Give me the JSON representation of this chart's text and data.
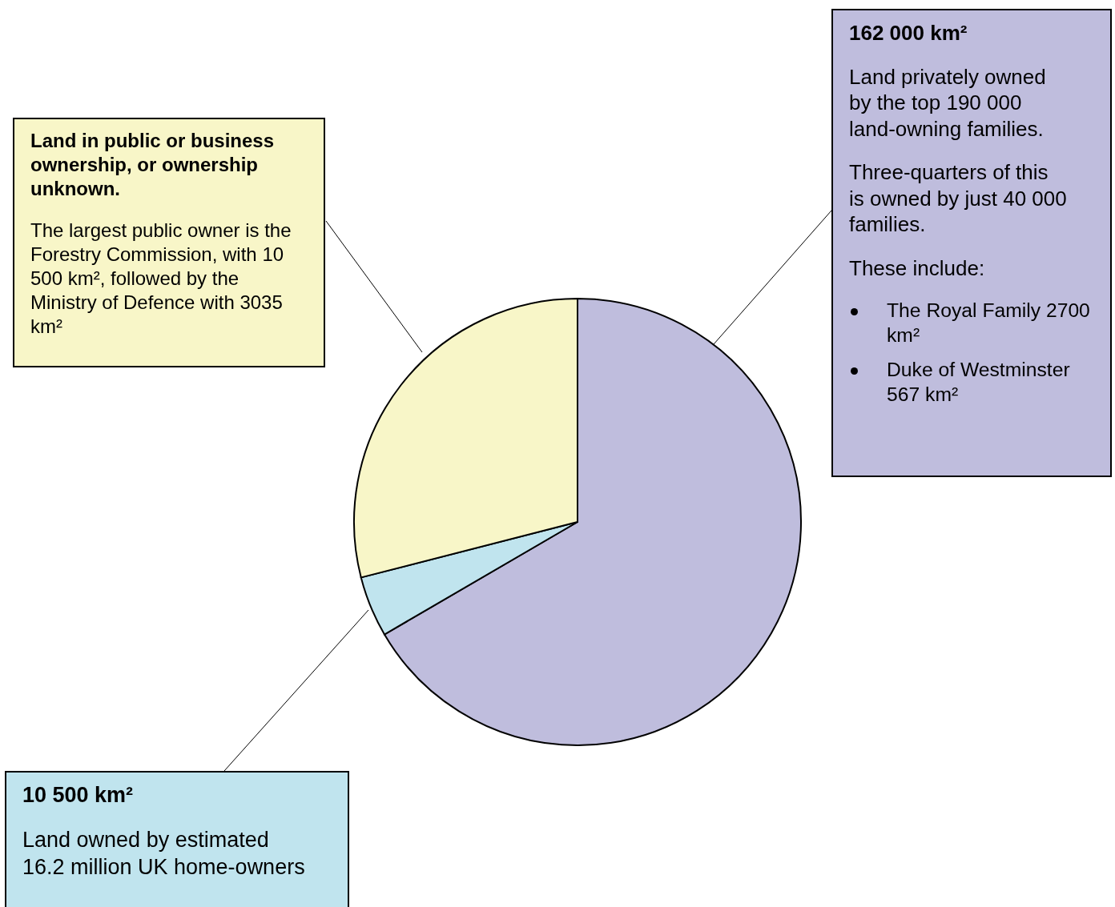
{
  "chart_data": {
    "type": "pie",
    "categories": [
      null,
      null,
      null
    ],
    "values": [
      66.6,
      4.4,
      29.0
    ],
    "legend": false,
    "colors": [
      "#bfbddd",
      "#c0e4ee",
      "#f8f6c8"
    ],
    "annotations": [
      "162 000 km²",
      "Land privately owned by the top 190 000 land-owning families.",
      "Three-quarters of this is owned by just 40 000 families.",
      "These include:",
      "The Royal Family 2700 km²",
      "Duke of Westminster 567 km²",
      "10 500 km²",
      "Land owned by estimated 16.2 million UK home-owners",
      "Land in public or business ownership, or ownership unknown.",
      "The largest public owner is the Forestry Commission, with 10 500 km², followed by the Ministry of Defence with 3035 km²"
    ]
  }
}
